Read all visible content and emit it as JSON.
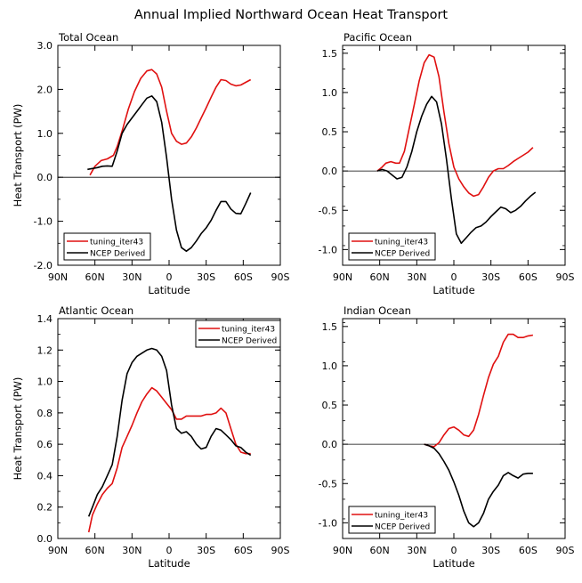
{
  "figure": {
    "title": "Annual Implied Northward Ocean Heat Transport"
  },
  "colors": {
    "model": "#e01010",
    "obs": "#000000",
    "axis": "#000000"
  },
  "chart_data": [
    {
      "type": "line",
      "panel": "total",
      "title": "Total Ocean",
      "xlabel": "Latitude",
      "ylabel": "Heat Transport (PW)",
      "x_ticks": [
        90,
        60,
        30,
        0,
        -30,
        -60,
        -90
      ],
      "x_tick_labels": [
        "90N",
        "60N",
        "30N",
        "0",
        "30S",
        "60S",
        "90S"
      ],
      "xlim": [
        90,
        -90
      ],
      "ylim": [
        -2.0,
        3.0
      ],
      "y_ticks": [
        -2.0,
        -1.0,
        0.0,
        1.0,
        2.0,
        3.0
      ],
      "y_tick_labels": [
        "-2.0",
        "-1.0",
        "0.0",
        "1.0",
        "2.0",
        "3.0"
      ],
      "zero_line": true,
      "legend_position": "bottom-left",
      "series": [
        {
          "name": "tuning_iter43",
          "color": "model",
          "x": [
            64,
            60,
            55,
            50,
            45,
            42,
            38,
            33,
            28,
            23,
            18,
            14,
            10,
            6,
            2,
            -2,
            -6,
            -10,
            -14,
            -18,
            -22,
            -26,
            -30,
            -34,
            -38,
            -42,
            -46,
            -50,
            -54,
            -58,
            -62,
            -66
          ],
          "y": [
            0.05,
            0.25,
            0.38,
            0.42,
            0.5,
            0.7,
            1.05,
            1.55,
            1.95,
            2.25,
            2.42,
            2.45,
            2.35,
            2.05,
            1.5,
            1.0,
            0.82,
            0.75,
            0.78,
            0.92,
            1.12,
            1.35,
            1.58,
            1.82,
            2.05,
            2.22,
            2.2,
            2.12,
            2.08,
            2.1,
            2.16,
            2.22
          ]
        },
        {
          "name": "NCEP Derived",
          "color": "obs",
          "x": [
            66,
            62,
            58,
            54,
            50,
            46,
            42,
            38,
            34,
            30,
            26,
            22,
            18,
            14,
            10,
            6,
            2,
            -2,
            -6,
            -10,
            -14,
            -18,
            -22,
            -26,
            -30,
            -34,
            -38,
            -42,
            -46,
            -50,
            -54,
            -58,
            -62,
            -66
          ],
          "y": [
            0.18,
            0.2,
            0.22,
            0.25,
            0.26,
            0.25,
            0.6,
            1.0,
            1.2,
            1.35,
            1.5,
            1.65,
            1.8,
            1.85,
            1.72,
            1.25,
            0.45,
            -0.5,
            -1.2,
            -1.6,
            -1.68,
            -1.6,
            -1.45,
            -1.28,
            -1.15,
            -0.98,
            -0.75,
            -0.55,
            -0.55,
            -0.72,
            -0.82,
            -0.83,
            -0.6,
            -0.35
          ]
        }
      ]
    },
    {
      "type": "line",
      "panel": "pacific",
      "title": "Pacific Ocean",
      "xlabel": "Latitude",
      "ylabel": "",
      "x_ticks": [
        90,
        60,
        30,
        0,
        -30,
        -60,
        -90
      ],
      "x_tick_labels": [
        "90N",
        "60N",
        "30N",
        "0",
        "30S",
        "60S",
        "90S"
      ],
      "xlim": [
        90,
        -90
      ],
      "ylim": [
        -1.2,
        1.6
      ],
      "y_ticks": [
        -1.0,
        -0.5,
        0.0,
        0.5,
        1.0,
        1.5
      ],
      "y_tick_labels": [
        "-1.0",
        "-0.5",
        "0.0",
        "0.5",
        "1.0",
        "1.5"
      ],
      "zero_line": true,
      "legend_position": "bottom-left",
      "series": [
        {
          "name": "tuning_iter43",
          "color": "model",
          "x": [
            62,
            58,
            55,
            51,
            47,
            44,
            40,
            36,
            32,
            28,
            24,
            20,
            16,
            12,
            8,
            4,
            0,
            -4,
            -8,
            -12,
            -16,
            -20,
            -24,
            -28,
            -32,
            -36,
            -40,
            -44,
            -48,
            -52,
            -56,
            -60,
            -64
          ],
          "y": [
            0.0,
            0.05,
            0.1,
            0.12,
            0.1,
            0.1,
            0.25,
            0.55,
            0.85,
            1.15,
            1.38,
            1.48,
            1.45,
            1.2,
            0.75,
            0.35,
            0.05,
            -0.1,
            -0.2,
            -0.28,
            -0.32,
            -0.3,
            -0.2,
            -0.08,
            0.0,
            0.03,
            0.03,
            0.07,
            0.12,
            0.16,
            0.2,
            0.24,
            0.3
          ]
        },
        {
          "name": "NCEP Derived",
          "color": "obs",
          "x": [
            62,
            58,
            54,
            50,
            46,
            42,
            38,
            34,
            30,
            26,
            22,
            18,
            14,
            10,
            6,
            2,
            -2,
            -6,
            -10,
            -14,
            -18,
            -22,
            -26,
            -30,
            -34,
            -38,
            -42,
            -46,
            -50,
            -54,
            -58,
            -62,
            -66
          ],
          "y": [
            0.0,
            0.02,
            0.0,
            -0.05,
            -0.1,
            -0.08,
            0.05,
            0.25,
            0.5,
            0.7,
            0.85,
            0.95,
            0.88,
            0.6,
            0.15,
            -0.35,
            -0.8,
            -0.92,
            -0.85,
            -0.78,
            -0.72,
            -0.7,
            -0.65,
            -0.58,
            -0.52,
            -0.46,
            -0.48,
            -0.53,
            -0.5,
            -0.45,
            -0.38,
            -0.32,
            -0.27
          ]
        }
      ]
    },
    {
      "type": "line",
      "panel": "atlantic",
      "title": "Atlantic Ocean",
      "xlabel": "Latitude",
      "ylabel": "Heat Transport (PW)",
      "x_ticks": [
        90,
        60,
        30,
        0,
        -30,
        -60,
        -90
      ],
      "x_tick_labels": [
        "90N",
        "60N",
        "30N",
        "0",
        "30S",
        "60S",
        "90S"
      ],
      "xlim": [
        90,
        -90
      ],
      "ylim": [
        0.0,
        1.4
      ],
      "y_ticks": [
        0.0,
        0.2,
        0.4,
        0.6,
        0.8,
        1.0,
        1.2,
        1.4
      ],
      "y_tick_labels": [
        "0.0",
        "0.2",
        "0.4",
        "0.6",
        "0.8",
        "1.0",
        "1.2",
        "1.4"
      ],
      "zero_line": false,
      "legend_position": "top-right",
      "series": [
        {
          "name": "tuning_iter43",
          "color": "model",
          "x": [
            65,
            62,
            58,
            54,
            50,
            46,
            42,
            38,
            34,
            30,
            26,
            22,
            18,
            14,
            10,
            6,
            2,
            -2,
            -6,
            -10,
            -14,
            -18,
            -22,
            -26,
            -30,
            -34,
            -38,
            -42,
            -46,
            -50,
            -54,
            -58,
            -62,
            -66
          ],
          "y": [
            0.04,
            0.15,
            0.22,
            0.28,
            0.32,
            0.35,
            0.45,
            0.58,
            0.65,
            0.72,
            0.8,
            0.87,
            0.92,
            0.96,
            0.94,
            0.9,
            0.86,
            0.82,
            0.76,
            0.76,
            0.78,
            0.78,
            0.78,
            0.78,
            0.79,
            0.79,
            0.8,
            0.83,
            0.8,
            0.7,
            0.6,
            0.55,
            0.54,
            0.54
          ]
        },
        {
          "name": "NCEP Derived",
          "color": "obs",
          "x": [
            65,
            62,
            58,
            54,
            50,
            46,
            42,
            38,
            34,
            30,
            26,
            22,
            18,
            14,
            10,
            6,
            2,
            -2,
            -6,
            -10,
            -14,
            -18,
            -22,
            -26,
            -30,
            -34,
            -38,
            -42,
            -46,
            -50,
            -54,
            -58,
            -62,
            -66
          ],
          "y": [
            0.14,
            0.2,
            0.28,
            0.33,
            0.4,
            0.47,
            0.65,
            0.88,
            1.05,
            1.12,
            1.16,
            1.18,
            1.2,
            1.21,
            1.2,
            1.16,
            1.07,
            0.85,
            0.7,
            0.67,
            0.68,
            0.65,
            0.6,
            0.57,
            0.58,
            0.65,
            0.7,
            0.69,
            0.66,
            0.63,
            0.59,
            0.58,
            0.55,
            0.53
          ]
        }
      ]
    },
    {
      "type": "line",
      "panel": "indian",
      "title": "Indian Ocean",
      "xlabel": "Latitude",
      "ylabel": "",
      "x_ticks": [
        90,
        60,
        30,
        0,
        -30,
        -60,
        -90
      ],
      "x_tick_labels": [
        "90N",
        "60N",
        "30N",
        "0",
        "30S",
        "60S",
        "90S"
      ],
      "xlim": [
        90,
        -90
      ],
      "ylim": [
        -1.2,
        1.6
      ],
      "y_ticks": [
        -1.0,
        -0.5,
        0.0,
        0.5,
        1.0,
        1.5
      ],
      "y_tick_labels": [
        "-1.0",
        "-0.5",
        "0.0",
        "0.5",
        "1.0",
        "1.5"
      ],
      "zero_line": true,
      "legend_position": "bottom-left",
      "series": [
        {
          "name": "tuning_iter43",
          "color": "model",
          "x": [
            24,
            20,
            16,
            12,
            8,
            4,
            0,
            -4,
            -8,
            -12,
            -16,
            -20,
            -24,
            -28,
            -32,
            -36,
            -40,
            -44,
            -48,
            -52,
            -56,
            -60,
            -64
          ],
          "y": [
            0.0,
            -0.02,
            -0.03,
            0.02,
            0.12,
            0.2,
            0.22,
            0.18,
            0.12,
            0.1,
            0.18,
            0.38,
            0.62,
            0.85,
            1.02,
            1.12,
            1.3,
            1.4,
            1.4,
            1.36,
            1.36,
            1.38,
            1.39
          ]
        },
        {
          "name": "NCEP Derived",
          "color": "obs",
          "x": [
            24,
            20,
            16,
            12,
            8,
            4,
            0,
            -4,
            -8,
            -12,
            -16,
            -20,
            -24,
            -28,
            -32,
            -36,
            -40,
            -44,
            -48,
            -52,
            -56,
            -60,
            -64
          ],
          "y": [
            0.0,
            -0.02,
            -0.05,
            -0.12,
            -0.22,
            -0.33,
            -0.48,
            -0.65,
            -0.85,
            -1.0,
            -1.05,
            -1.0,
            -0.88,
            -0.7,
            -0.6,
            -0.52,
            -0.4,
            -0.36,
            -0.4,
            -0.43,
            -0.38,
            -0.37,
            -0.37
          ]
        }
      ]
    }
  ]
}
